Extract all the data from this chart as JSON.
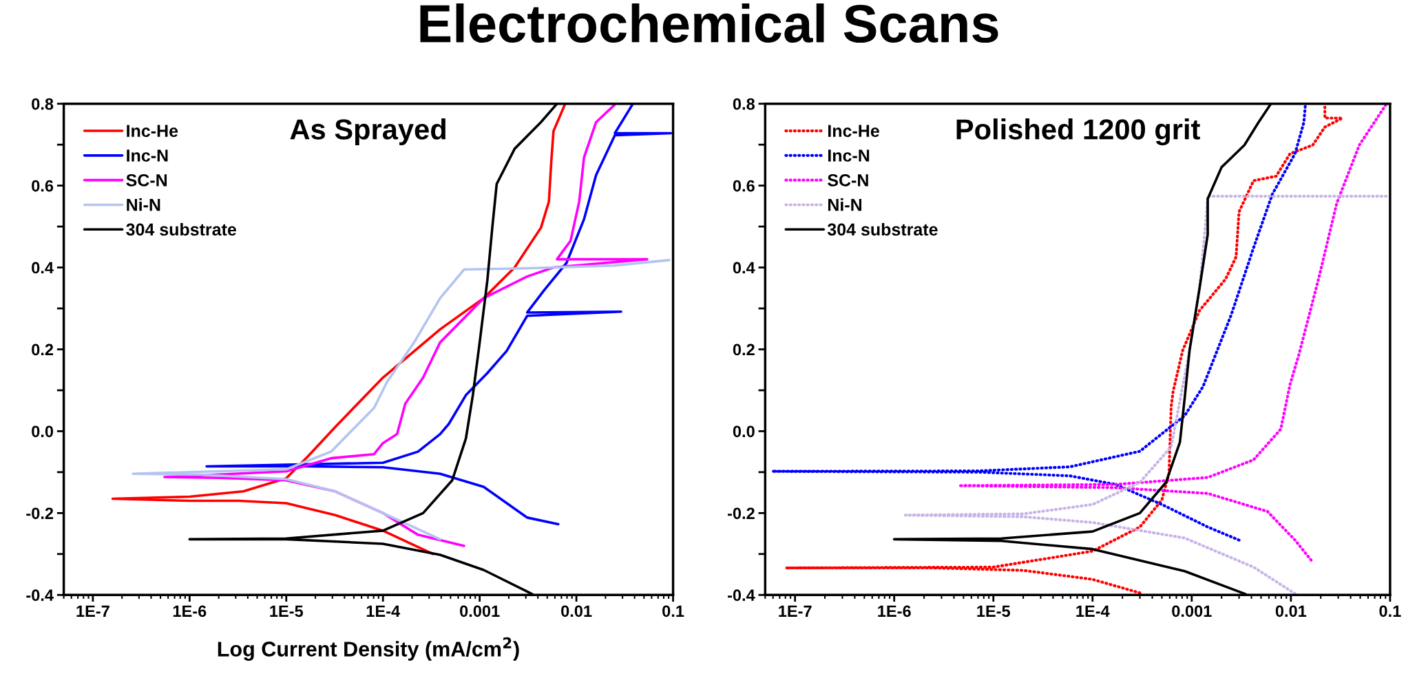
{
  "chart_data": [
    {
      "type": "line",
      "title": "As Sprayed",
      "xlabel": "Log Current Density (mA/cm$^{2}$)",
      "annotations": [
        "Electrochemical Scans"
      ],
      "log": "x",
      "legend": "top left",
      "line_style": "solid",
      "xlim": [
        5e-08,
        0.1
      ],
      "xticks": [
        {
          "value": 1e-07,
          "label": "1E-7"
        },
        {
          "value": 1e-06,
          "label": "1E-6"
        },
        {
          "value": 1e-05,
          "label": "1E-5"
        },
        {
          "value": 0.0001,
          "label": "1E-4"
        },
        0.001,
        0.01,
        0.1
      ],
      "ylim": [
        -0.4,
        0.8
      ],
      "yticks": [
        -0.4,
        {
          "value": -0.3,
          "label": null
        },
        -0.2,
        {
          "value": -0.1,
          "label": null
        },
        {
          "value": 0,
          "label": "0.0"
        },
        {
          "value": 0.1,
          "label": null
        },
        0.2,
        {
          "value": 0.3,
          "label": null
        },
        0.4,
        {
          "value": 0.5,
          "label": null
        },
        0.6,
        {
          "value": 0.7,
          "label": null
        },
        0.8
      ],
      "series": [
        {
          "name": "Inc-He",
          "color": "#ff0000",
          "x": [
            0.00033,
            0.0001,
            3.2e-05,
            1e-05,
            3.2e-06,
            1e-06,
            1.6e-07,
            1e-06,
            3.6e-06,
            1e-05,
            1.7e-05,
            3.2e-05,
            0.0001,
            0.00039,
            0.0011,
            0.0023,
            0.0043,
            0.0052,
            0.0055,
            0.0058,
            0.0076
          ],
          "values": [
            -0.3,
            -0.243,
            -0.205,
            -0.176,
            -0.17,
            -0.17,
            -0.165,
            -0.16,
            -0.147,
            -0.115,
            -0.06,
            0.01,
            0.131,
            0.249,
            0.325,
            0.4,
            0.497,
            0.561,
            0.658,
            0.733,
            0.798
          ]
        },
        {
          "name": "Inc-N",
          "color": "#0000ff",
          "x": [
            0.0065,
            0.0031,
            0.0011,
            0.00039,
            0.0001,
            1.7e-05,
            1.5e-06,
            0.0001,
            0.00023,
            0.00039,
            0.00048,
            0.00072,
            0.0012,
            0.0019,
            0.0031,
            0.029,
            0.0031,
            0.0047,
            0.0079,
            0.012,
            0.016,
            0.025,
            0.095,
            0.025,
            0.038
          ],
          "values": [
            -0.227,
            -0.211,
            -0.136,
            -0.104,
            -0.088,
            -0.086,
            -0.086,
            -0.077,
            -0.05,
            -0.007,
            0.018,
            0.088,
            0.142,
            0.196,
            0.282,
            0.292,
            0.29,
            0.346,
            0.411,
            0.518,
            0.626,
            0.723,
            0.728,
            0.728,
            0.798
          ]
        },
        {
          "name": "SC-N",
          "color": "#ff00ff",
          "x": [
            0.00069,
            0.00023,
            0.0001,
            3.2e-05,
            1e-05,
            2.1e-06,
            5.5e-07,
            1e-05,
            2.9e-05,
            8.1e-05,
            0.0001,
            0.00014,
            0.00017,
            0.00026,
            0.00039,
            0.0011,
            0.0031,
            0.0058,
            0.054,
            0.0063,
            0.0087,
            0.0107,
            0.012,
            0.016,
            0.025
          ],
          "values": [
            -0.28,
            -0.253,
            -0.2,
            -0.147,
            -0.12,
            -0.114,
            -0.112,
            -0.098,
            -0.066,
            -0.056,
            -0.029,
            -0.007,
            0.067,
            0.131,
            0.217,
            0.325,
            0.378,
            0.4,
            0.42,
            0.42,
            0.465,
            0.561,
            0.669,
            0.755,
            0.798
          ]
        },
        {
          "name": "Ni-N",
          "color": "#b4c4f0",
          "x": [
            0.00039,
            0.0001,
            3.2e-05,
            1e-05,
            1.3e-06,
            2.6e-07,
            1e-05,
            2.9e-05,
            8.1e-05,
            0.00011,
            0.00021,
            0.00039,
            0.00069,
            0.0031,
            0.025,
            0.091
          ],
          "values": [
            -0.264,
            -0.2,
            -0.147,
            -0.117,
            -0.106,
            -0.104,
            -0.093,
            -0.05,
            0.057,
            0.12,
            0.217,
            0.325,
            0.395,
            0.398,
            0.405,
            0.418
          ]
        },
        {
          "name": "304 substrate",
          "color": "#000000",
          "x": [
            0.0035,
            0.0011,
            0.00039,
            0.0001,
            1e-05,
            1e-06,
            1e-05,
            0.0001,
            0.00026,
            0.00052,
            0.00072,
            0.00085,
            0.001,
            0.0012,
            0.00135,
            0.0015,
            0.0023,
            0.0043,
            0.0062
          ],
          "values": [
            -0.398,
            -0.339,
            -0.302,
            -0.275,
            -0.264,
            -0.264,
            -0.262,
            -0.243,
            -0.2,
            -0.12,
            -0.018,
            0.088,
            0.217,
            0.368,
            0.497,
            0.604,
            0.69,
            0.755,
            0.798
          ]
        }
      ]
    },
    {
      "type": "line",
      "title": "Polished 1200 grit",
      "log": "x",
      "legend": "top left",
      "line_style": "dotted",
      "xlim": [
        5e-08,
        0.1
      ],
      "xticks": [
        {
          "value": 1e-07,
          "label": "1E-7"
        },
        {
          "value": 1e-06,
          "label": "1E-6"
        },
        {
          "value": 1e-05,
          "label": "1E-5"
        },
        {
          "value": 0.0001,
          "label": "1E-4"
        },
        0.001,
        0.01,
        0.1
      ],
      "ylim": [
        -0.4,
        0.8
      ],
      "yticks": [
        -0.4,
        {
          "value": -0.3,
          "label": null
        },
        -0.2,
        {
          "value": -0.1,
          "label": null
        },
        {
          "value": 0,
          "label": "0.0"
        },
        {
          "value": 0.1,
          "label": null
        },
        0.2,
        {
          "value": 0.3,
          "label": null
        },
        0.4,
        {
          "value": 0.5,
          "label": null
        },
        0.6,
        {
          "value": 0.7,
          "label": null
        },
        0.8
      ],
      "series": [
        {
          "name": "Inc-He",
          "color": "#ff0000",
          "x": [
            0.0003,
            0.0001,
            2e-05,
            2.5e-06,
            8.1e-08,
            1e-05,
            0.0001,
            0.0003,
            0.0005,
            0.00059,
            0.00062,
            0.00065,
            0.00081,
            0.0012,
            0.0022,
            0.0028,
            0.003,
            0.0042,
            0.0071,
            0.0098,
            0.0166,
            0.022,
            0.033,
            0.022,
            0.022
          ],
          "values": [
            -0.395,
            -0.362,
            -0.34,
            -0.334,
            -0.334,
            -0.332,
            -0.293,
            -0.234,
            -0.168,
            -0.103,
            0.06,
            0.098,
            0.197,
            0.295,
            0.372,
            0.426,
            0.536,
            0.612,
            0.623,
            0.678,
            0.699,
            0.743,
            0.765,
            0.765,
            0.798
          ]
        },
        {
          "name": "Inc-N",
          "color": "#0000ff",
          "x": [
            0.003,
            0.00145,
            0.0005,
            0.00017,
            5.9e-05,
            7.1e-06,
            5.9e-08,
            7.1e-06,
            5.9e-05,
            0.0003,
            0.00085,
            0.0013,
            0.0025,
            0.0042,
            0.0065,
            0.011,
            0.0135,
            0.014
          ],
          "values": [
            -0.266,
            -0.234,
            -0.179,
            -0.13,
            -0.109,
            -0.1,
            -0.098,
            -0.097,
            -0.087,
            -0.049,
            0.038,
            0.109,
            0.284,
            0.448,
            0.579,
            0.678,
            0.754,
            0.798
          ]
        },
        {
          "name": "SC-N",
          "color": "#ff00ff",
          "x": [
            0.016,
            0.011,
            0.0058,
            0.00145,
            0.00017,
            4.5e-06,
            0.00017,
            0.00145,
            0.0042,
            0.0079,
            0.0098,
            0.012,
            0.019,
            0.029,
            0.049,
            0.091
          ],
          "values": [
            -0.315,
            -0.266,
            -0.196,
            -0.152,
            -0.138,
            -0.133,
            -0.13,
            -0.113,
            -0.07,
            0.005,
            0.114,
            0.186,
            0.372,
            0.557,
            0.699,
            0.798
          ]
        },
        {
          "name": "Ni-N",
          "color": "#c8b4e8",
          "x": [
            0.011,
            0.0042,
            0.00085,
            0.0001,
            2e-05,
            1.3e-06,
            2e-05,
            0.0001,
            0.0003,
            0.00062,
            0.00095,
            0.0012,
            0.0014,
            0.00145,
            0.012,
            0.098
          ],
          "values": [
            -0.397,
            -0.332,
            -0.261,
            -0.223,
            -0.209,
            -0.205,
            -0.202,
            -0.179,
            -0.125,
            -0.038,
            0.197,
            0.35,
            0.525,
            0.574,
            0.574,
            0.574
          ]
        },
        {
          "name": "304 substrate",
          "color": "#000000",
          "line_style": "solid",
          "x": [
            0.0035,
            0.00085,
            0.0001,
            1.2e-05,
            1e-06,
            1.2e-05,
            0.0001,
            0.0003,
            0.00055,
            0.00076,
            0.00085,
            0.00095,
            0.0012,
            0.00145,
            0.00145,
            0.002,
            0.0034,
            0.0047,
            0.0062
          ],
          "values": [
            -0.398,
            -0.342,
            -0.288,
            -0.268,
            -0.264,
            -0.262,
            -0.245,
            -0.2,
            -0.125,
            -0.027,
            0.082,
            0.197,
            0.35,
            0.481,
            0.568,
            0.645,
            0.699,
            0.754,
            0.798
          ]
        }
      ]
    }
  ]
}
